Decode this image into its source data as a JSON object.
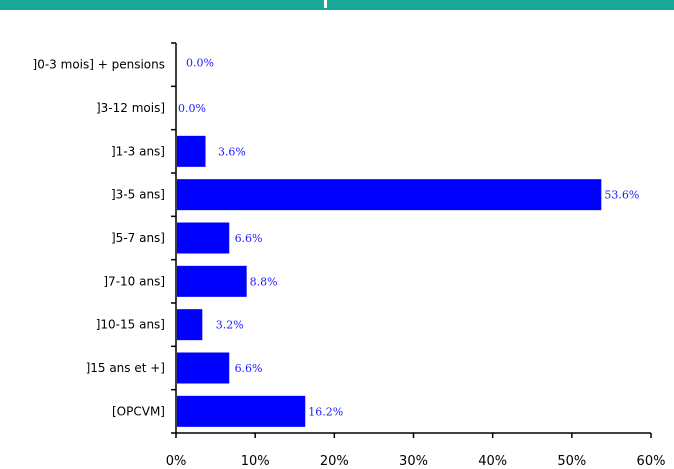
{
  "colors": {
    "header_band": "#1aa89a",
    "bar": "#0000ff",
    "data_label": "#1a1aff",
    "axis": "#000000"
  },
  "chart_data": {
    "type": "bar",
    "orientation": "horizontal",
    "categories": [
      "]0-3 mois] + pensions",
      "]3-12 mois]",
      "]1-3 ans]",
      "]3-5 ans]",
      "]5-7 ans]",
      "]7-10 ans]",
      "]10-15 ans]",
      "]15 ans et +]",
      "[OPCVM]"
    ],
    "values": [
      0.0,
      0.0,
      3.6,
      53.6,
      6.6,
      8.8,
      3.2,
      6.6,
      16.2
    ],
    "data_labels": [
      "0.0%",
      "0.0%",
      "3.6%",
      "53.6%",
      "6.6%",
      "8.8%",
      "3.2%",
      "6.6%",
      "16.2%"
    ],
    "xlim": [
      0,
      60
    ],
    "x_ticks": [
      0,
      10,
      20,
      30,
      40,
      50,
      60
    ],
    "x_tick_labels": [
      "0%",
      "10%",
      "20%",
      "30%",
      "40%",
      "50%",
      "60%"
    ],
    "grid": false,
    "legend": "none"
  }
}
